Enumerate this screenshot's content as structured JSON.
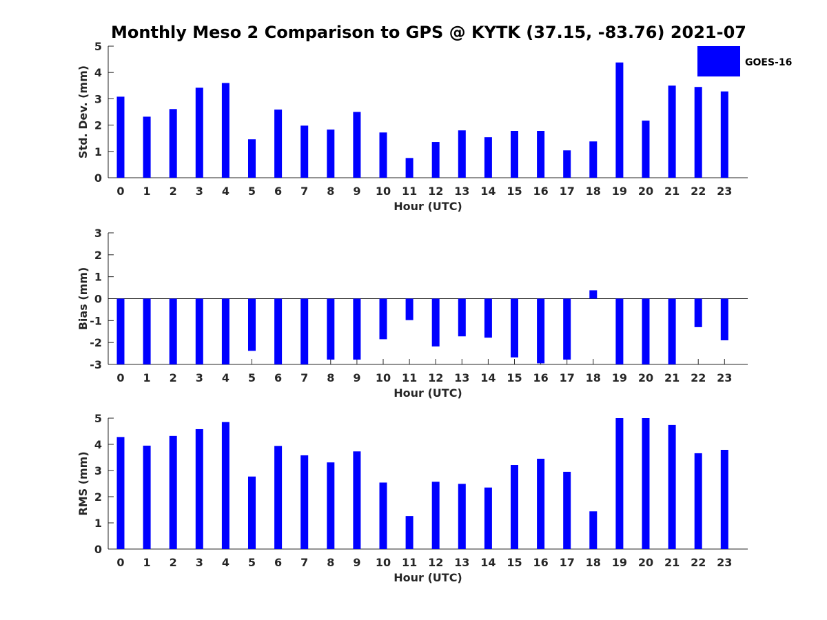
{
  "title": "Monthly Meso 2 Comparison to GPS @ KYTK (37.15, -83.76) 2021-07",
  "legend": {
    "label": "GOES-16",
    "color": "#0000ff"
  },
  "chart_data": [
    {
      "type": "bar",
      "xlabel": "Hour (UTC)",
      "ylabel": "Std. Dev. (mm)",
      "ylim": [
        0,
        5
      ],
      "yticks": [
        0,
        1,
        2,
        3,
        4,
        5
      ],
      "categories": [
        "0",
        "1",
        "2",
        "3",
        "4",
        "5",
        "6",
        "7",
        "8",
        "9",
        "10",
        "11",
        "12",
        "13",
        "14",
        "15",
        "16",
        "17",
        "18",
        "19",
        "20",
        "21",
        "22",
        "23"
      ],
      "series": [
        {
          "name": "GOES-16",
          "color": "#0000ff",
          "values": [
            3.08,
            2.32,
            2.61,
            3.42,
            3.6,
            1.46,
            2.59,
            1.98,
            1.83,
            2.5,
            1.72,
            0.75,
            1.36,
            1.8,
            1.54,
            1.78,
            1.78,
            1.04,
            1.38,
            4.38,
            2.17,
            3.5,
            3.45,
            3.28
          ]
        }
      ]
    },
    {
      "type": "bar",
      "xlabel": "Hour (UTC)",
      "ylabel": "Bias (mm)",
      "ylim": [
        -3,
        3
      ],
      "yticks": [
        -3,
        -2,
        -1,
        0,
        1,
        2,
        3
      ],
      "categories": [
        "0",
        "1",
        "2",
        "3",
        "4",
        "5",
        "6",
        "7",
        "8",
        "9",
        "10",
        "11",
        "12",
        "13",
        "14",
        "15",
        "16",
        "17",
        "18",
        "19",
        "20",
        "21",
        "22",
        "23"
      ],
      "series": [
        {
          "name": "GOES-16",
          "color": "#0000ff",
          "values": [
            -3.0,
            -3.0,
            -3.0,
            -3.0,
            -3.0,
            -2.38,
            -3.0,
            -3.0,
            -2.78,
            -2.78,
            -1.85,
            -0.98,
            -2.18,
            -1.72,
            -1.78,
            -2.68,
            -2.95,
            -2.78,
            0.38,
            -3.0,
            -3.0,
            -3.0,
            -1.3,
            -1.9
          ]
        }
      ]
    },
    {
      "type": "bar",
      "xlabel": "Hour (UTC)",
      "ylabel": "RMS (mm)",
      "ylim": [
        0,
        5
      ],
      "yticks": [
        0,
        1,
        2,
        3,
        4,
        5
      ],
      "categories": [
        "0",
        "1",
        "2",
        "3",
        "4",
        "5",
        "6",
        "7",
        "8",
        "9",
        "10",
        "11",
        "12",
        "13",
        "14",
        "15",
        "16",
        "17",
        "18",
        "19",
        "20",
        "21",
        "22",
        "23"
      ],
      "series": [
        {
          "name": "GOES-16",
          "color": "#0000ff",
          "values": [
            4.28,
            3.95,
            4.32,
            4.58,
            4.85,
            2.77,
            3.94,
            3.58,
            3.31,
            3.73,
            2.54,
            1.26,
            2.57,
            2.49,
            2.35,
            3.21,
            3.45,
            2.95,
            1.44,
            5.0,
            5.0,
            4.74,
            3.66,
            3.79
          ]
        }
      ]
    }
  ]
}
